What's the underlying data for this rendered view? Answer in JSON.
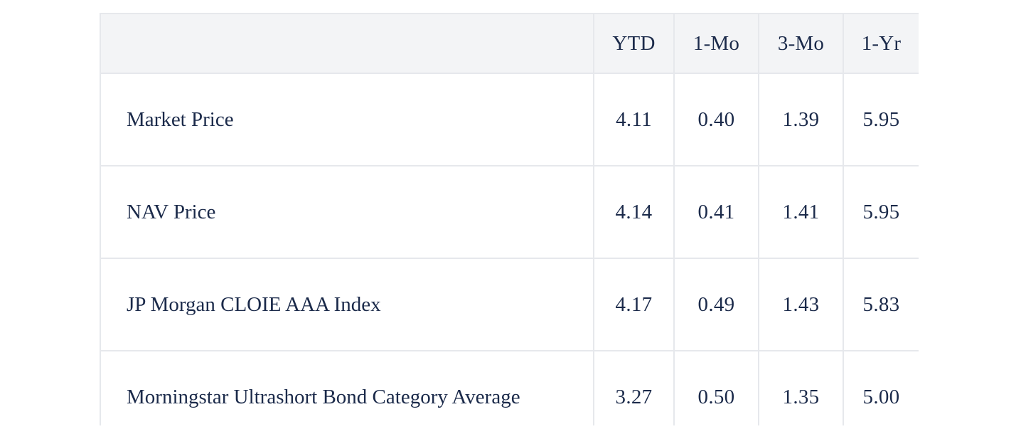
{
  "table": {
    "columns": [
      "",
      "YTD",
      "1-Mo",
      "3-Mo",
      "1-Yr"
    ],
    "rows": [
      {
        "label": "Market Price",
        "values": [
          "4.11",
          "0.40",
          "1.39",
          "5.95"
        ]
      },
      {
        "label": "NAV Price",
        "values": [
          "4.14",
          "0.41",
          "1.41",
          "5.95"
        ]
      },
      {
        "label": "JP Morgan CLOIE AAA Index",
        "values": [
          "4.17",
          "0.49",
          "1.43",
          "5.83"
        ]
      },
      {
        "label": "Morningstar Ultrashort Bond Category Average",
        "values": [
          "3.27",
          "0.50",
          "1.35",
          "5.00"
        ]
      }
    ]
  },
  "colors": {
    "text": "#1b2a4a",
    "header_bg": "#f3f4f6",
    "border": "#e6e8ec",
    "background": "#ffffff"
  }
}
